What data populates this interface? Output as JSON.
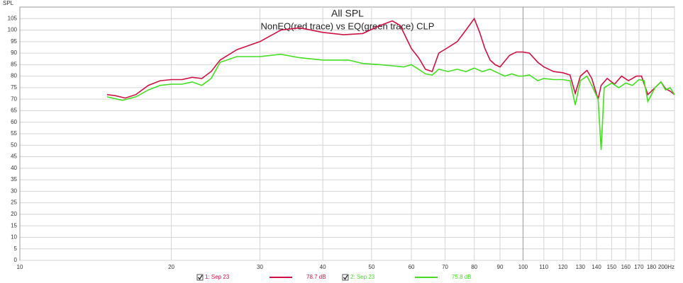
{
  "chart_data": {
    "type": "line",
    "title": "All SPL",
    "subtitle": "NonEQ(red trace) vs EQ(green trace) CLP",
    "y_label": "SPL",
    "xscale": "log",
    "xlim": [
      10,
      200
    ],
    "ylim": [
      0,
      110
    ],
    "grid": true,
    "xticks": [
      10,
      20,
      30,
      40,
      50,
      60,
      70,
      80,
      90,
      100,
      110,
      120,
      130,
      140,
      150,
      160,
      170,
      180,
      {
        "value": 200,
        "label": "200Hz"
      }
    ],
    "yticks": [
      0,
      5,
      10,
      15,
      20,
      25,
      30,
      35,
      40,
      45,
      50,
      55,
      60,
      65,
      70,
      75,
      80,
      85,
      90,
      95,
      100,
      105
    ],
    "series": [
      {
        "name": "1: Sep 23",
        "color": "#cc1144",
        "level": "78.7 dB",
        "x": [
          14.9,
          15.5,
          16.2,
          17,
          18,
          19,
          20,
          21,
          22,
          23,
          24,
          25,
          27,
          30,
          33,
          36,
          40,
          44,
          48,
          52,
          55,
          57,
          60,
          62,
          64,
          66,
          68,
          71,
          74,
          77,
          80,
          82,
          84,
          86,
          88,
          90,
          94,
          97,
          100,
          103,
          107,
          110,
          115,
          120,
          124,
          127,
          130,
          134,
          137,
          141,
          143,
          147,
          152,
          157,
          162,
          168,
          172,
          177,
          183,
          188,
          192,
          196,
          200
        ],
        "values": [
          72,
          71.5,
          70.5,
          72,
          76,
          78,
          78.5,
          78.5,
          79.5,
          79,
          82,
          87,
          91.5,
          95,
          100,
          101,
          99,
          98,
          98.5,
          102,
          104,
          102,
          92,
          88,
          83,
          82,
          90,
          92.5,
          95,
          100,
          105,
          99,
          92,
          87,
          85,
          84,
          89,
          90.5,
          90.5,
          90,
          86,
          84,
          82,
          81.5,
          80.5,
          72.5,
          80,
          82.5,
          79,
          70,
          76,
          79,
          76.5,
          80,
          78,
          80,
          80,
          72,
          75,
          77.5,
          74.5,
          73.5,
          72
        ]
      },
      {
        "name": "2: Sep 23",
        "color": "#44dd22",
        "level": "75.8 dB",
        "x": [
          14.9,
          16,
          17,
          18,
          19,
          20,
          21,
          22,
          23,
          24,
          25,
          27,
          30,
          33,
          36,
          40,
          45,
          48,
          52,
          55,
          58,
          60,
          62,
          64,
          66,
          68,
          71,
          74,
          77,
          80,
          83,
          86,
          89,
          92,
          95,
          98,
          100,
          103,
          107,
          110,
          115,
          120,
          124,
          127,
          130,
          134,
          137,
          141,
          143,
          145,
          150,
          155,
          160,
          165,
          170,
          174,
          177,
          183,
          188,
          192,
          196,
          200
        ],
        "values": [
          71,
          69.5,
          71,
          74,
          76,
          76.5,
          76.5,
          77.5,
          76,
          79,
          86,
          88.5,
          88.5,
          89.5,
          88,
          87,
          87,
          85.5,
          85,
          84.5,
          84,
          85,
          83,
          81,
          80.5,
          83,
          82,
          83,
          82,
          83.5,
          82,
          83,
          81.5,
          80,
          81,
          80,
          80,
          80.5,
          78,
          79,
          78.5,
          78.5,
          78,
          67.5,
          78,
          80,
          76,
          70,
          48,
          75,
          77,
          75,
          77,
          76,
          78.5,
          78,
          69,
          75,
          77.5,
          74,
          75,
          72
        ]
      }
    ]
  }
}
